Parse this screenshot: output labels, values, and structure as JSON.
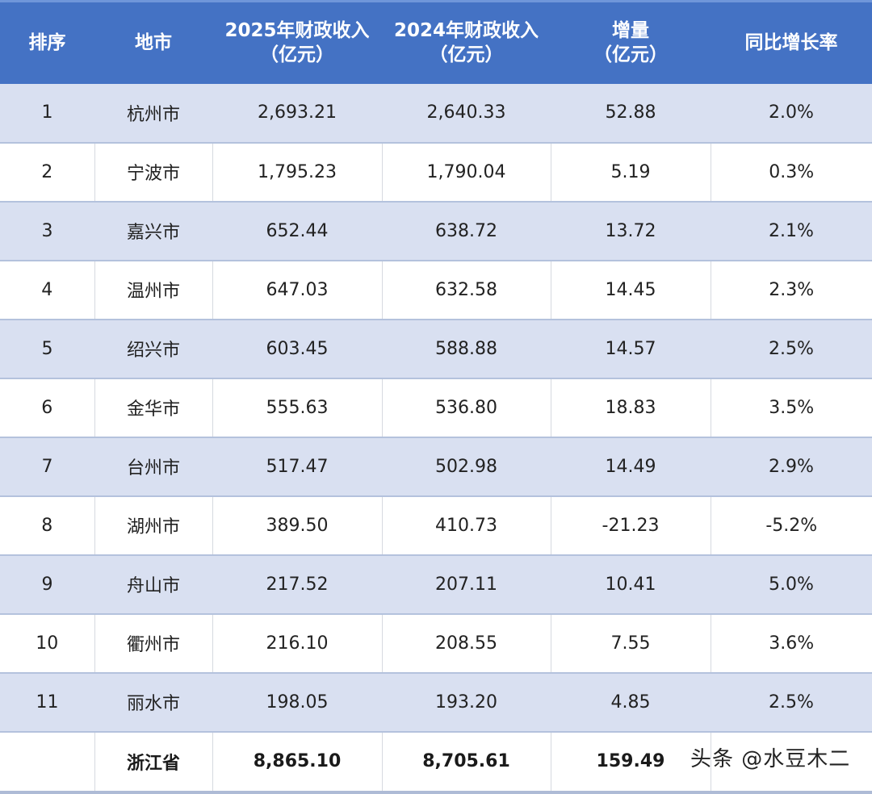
{
  "table": {
    "headers": [
      {
        "line1": "排序",
        "line2": ""
      },
      {
        "line1": "地市",
        "line2": ""
      },
      {
        "line1": "2025年财政收入",
        "line2": "（亿元）"
      },
      {
        "line1": "2024年财政收入",
        "line2": "（亿元）"
      },
      {
        "line1": "增量",
        "line2": "（亿元）"
      },
      {
        "line1": "同比增长率",
        "line2": ""
      }
    ],
    "rows": [
      {
        "rank": "1",
        "city": "杭州市",
        "rev2025": "2,693.21",
        "rev2024": "2,640.33",
        "increase": "52.88",
        "growth": "2.0%"
      },
      {
        "rank": "2",
        "city": "宁波市",
        "rev2025": "1,795.23",
        "rev2024": "1,790.04",
        "increase": "5.19",
        "growth": "0.3%"
      },
      {
        "rank": "3",
        "city": "嘉兴市",
        "rev2025": "652.44",
        "rev2024": "638.72",
        "increase": "13.72",
        "growth": "2.1%"
      },
      {
        "rank": "4",
        "city": "温州市",
        "rev2025": "647.03",
        "rev2024": "632.58",
        "increase": "14.45",
        "growth": "2.3%"
      },
      {
        "rank": "5",
        "city": "绍兴市",
        "rev2025": "603.45",
        "rev2024": "588.88",
        "increase": "14.57",
        "growth": "2.5%"
      },
      {
        "rank": "6",
        "city": "金华市",
        "rev2025": "555.63",
        "rev2024": "536.80",
        "increase": "18.83",
        "growth": "3.5%"
      },
      {
        "rank": "7",
        "city": "台州市",
        "rev2025": "517.47",
        "rev2024": "502.98",
        "increase": "14.49",
        "growth": "2.9%"
      },
      {
        "rank": "8",
        "city": "湖州市",
        "rev2025": "389.50",
        "rev2024": "410.73",
        "increase": "-21.23",
        "growth": "-5.2%"
      },
      {
        "rank": "9",
        "city": "舟山市",
        "rev2025": "217.52",
        "rev2024": "207.11",
        "increase": "10.41",
        "growth": "5.0%"
      },
      {
        "rank": "10",
        "city": "衢州市",
        "rev2025": "216.10",
        "rev2024": "208.55",
        "increase": "7.55",
        "growth": "3.6%"
      },
      {
        "rank": "11",
        "city": "丽水市",
        "rev2025": "198.05",
        "rev2024": "193.20",
        "increase": "4.85",
        "growth": "2.5%"
      }
    ],
    "total": {
      "rank": "",
      "city": "浙江省",
      "rev2025": "8,865.10",
      "rev2024": "8,705.61",
      "increase": "159.49",
      "growth": ""
    }
  },
  "watermark": "头条 @水豆木二",
  "colors": {
    "header_bg": "#4472c4",
    "stripe_bg": "#d9e0f1",
    "header_text": "#ffffff"
  }
}
